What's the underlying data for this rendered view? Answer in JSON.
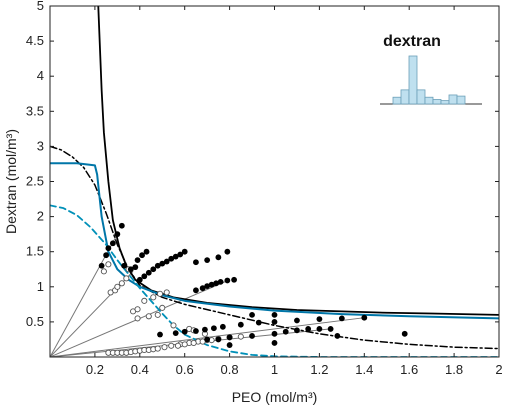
{
  "chart_data": {
    "type": "scatter",
    "title": "",
    "xlabel": "PEO (mol/m³)",
    "ylabel": "Dextran (mol/m³)",
    "xlim": [
      0,
      2
    ],
    "ylim": [
      0,
      5
    ],
    "xticks": [
      0.2,
      0.4,
      0.6,
      0.8,
      1,
      1.2,
      1.4,
      1.6,
      1.8,
      2
    ],
    "yticks": [
      0.5,
      1,
      1.5,
      2,
      2.5,
      3,
      3.5,
      4,
      4.5,
      5
    ],
    "grid": false,
    "colors": {
      "black": "#000000",
      "blue": "#0076a8",
      "dashed_blue": "#0090b8",
      "tie_line": "#777777",
      "inset_fill": "#bfe0ef",
      "inset_stroke": "#6b9fb8"
    },
    "inset": {
      "title": "dextran",
      "bars": [
        0.12,
        0.25,
        0.85,
        0.25,
        0.12,
        0.08,
        0.06,
        0.16,
        0.14
      ]
    },
    "series": [
      {
        "style": "solid-black",
        "points": [
          [
            0.215,
            5.0
          ],
          [
            0.22,
            4.6
          ],
          [
            0.23,
            3.8
          ],
          [
            0.24,
            3.2
          ],
          [
            0.26,
            2.5
          ],
          [
            0.28,
            1.95
          ],
          [
            0.31,
            1.55
          ],
          [
            0.34,
            1.3
          ],
          [
            0.38,
            1.1
          ],
          [
            0.45,
            0.95
          ],
          [
            0.55,
            0.85
          ],
          [
            0.7,
            0.77
          ],
          [
            0.9,
            0.71
          ],
          [
            1.1,
            0.67
          ],
          [
            1.3,
            0.65
          ],
          [
            1.5,
            0.63
          ],
          [
            1.7,
            0.62
          ],
          [
            2.0,
            0.6
          ]
        ]
      },
      {
        "style": "dashdot-black",
        "points": [
          [
            0.0,
            3.0
          ],
          [
            0.05,
            2.95
          ],
          [
            0.1,
            2.85
          ],
          [
            0.15,
            2.7
          ],
          [
            0.2,
            2.45
          ],
          [
            0.25,
            2.05
          ],
          [
            0.3,
            1.6
          ],
          [
            0.35,
            1.25
          ],
          [
            0.4,
            1.02
          ],
          [
            0.5,
            0.85
          ],
          [
            0.6,
            0.75
          ],
          [
            0.8,
            0.6
          ],
          [
            1.0,
            0.45
          ],
          [
            1.2,
            0.33
          ],
          [
            1.4,
            0.24
          ],
          [
            1.6,
            0.18
          ],
          [
            1.8,
            0.14
          ],
          [
            2.0,
            0.12
          ]
        ]
      },
      {
        "style": "solid-blue",
        "points": [
          [
            0.0,
            2.76
          ],
          [
            0.12,
            2.76
          ],
          [
            0.2,
            2.73
          ],
          [
            0.21,
            2.6
          ],
          [
            0.23,
            2.0
          ],
          [
            0.26,
            1.5
          ],
          [
            0.3,
            1.25
          ],
          [
            0.35,
            1.1
          ],
          [
            0.4,
            1.0
          ],
          [
            0.5,
            0.88
          ],
          [
            0.6,
            0.8
          ],
          [
            0.8,
            0.72
          ],
          [
            1.0,
            0.66
          ],
          [
            1.3,
            0.61
          ],
          [
            1.6,
            0.58
          ],
          [
            2.0,
            0.55
          ]
        ]
      },
      {
        "style": "dashed-blue",
        "points": [
          [
            0.0,
            2.16
          ],
          [
            0.06,
            2.12
          ],
          [
            0.12,
            2.02
          ],
          [
            0.18,
            1.85
          ],
          [
            0.25,
            1.6
          ],
          [
            0.3,
            1.38
          ],
          [
            0.35,
            1.18
          ],
          [
            0.38,
            1.06
          ],
          [
            0.4,
            0.98
          ],
          [
            0.45,
            0.8
          ],
          [
            0.5,
            0.62
          ],
          [
            0.55,
            0.45
          ],
          [
            0.6,
            0.32
          ],
          [
            0.7,
            0.17
          ],
          [
            0.8,
            0.08
          ],
          [
            0.9,
            0.03
          ],
          [
            1.0,
            0.01
          ],
          [
            1.2,
            0.0
          ],
          [
            2.0,
            0.0
          ]
        ]
      }
    ],
    "tie_lines": [
      {
        "from": [
          0.0,
          0.0
        ],
        "to": [
          0.3,
          1.75
        ]
      },
      {
        "from": [
          0.0,
          0.0
        ],
        "to": [
          0.37,
          1.22
        ]
      },
      {
        "from": [
          0.0,
          0.0
        ],
        "to": [
          0.8,
          1.1
        ]
      },
      {
        "from": [
          0.0,
          0.0
        ],
        "to": [
          1.4,
          0.56
        ]
      },
      {
        "from": [
          0.0,
          0.0
        ],
        "to": [
          1.25,
          0.4
        ]
      }
    ],
    "filled_points": [
      [
        0.23,
        1.3
      ],
      [
        0.25,
        1.45
      ],
      [
        0.26,
        1.55
      ],
      [
        0.28,
        1.62
      ],
      [
        0.3,
        1.75
      ],
      [
        0.32,
        1.87
      ],
      [
        0.33,
        1.3
      ],
      [
        0.36,
        1.25
      ],
      [
        0.38,
        1.28
      ],
      [
        0.39,
        1.38
      ],
      [
        0.41,
        1.45
      ],
      [
        0.43,
        1.5
      ],
      [
        0.4,
        1.1
      ],
      [
        0.42,
        1.15
      ],
      [
        0.44,
        1.2
      ],
      [
        0.46,
        1.25
      ],
      [
        0.48,
        1.3
      ],
      [
        0.5,
        1.33
      ],
      [
        0.52,
        1.36
      ],
      [
        0.54,
        1.4
      ],
      [
        0.56,
        1.43
      ],
      [
        0.58,
        1.46
      ],
      [
        0.6,
        1.5
      ],
      [
        0.65,
        1.35
      ],
      [
        0.7,
        1.38
      ],
      [
        0.75,
        1.42
      ],
      [
        0.79,
        1.5
      ],
      [
        0.65,
        0.95
      ],
      [
        0.68,
        0.98
      ],
      [
        0.7,
        1.01
      ],
      [
        0.72,
        1.03
      ],
      [
        0.74,
        1.05
      ],
      [
        0.76,
        1.07
      ],
      [
        0.79,
        1.09
      ],
      [
        0.82,
        1.1
      ],
      [
        0.49,
        0.32
      ],
      [
        0.56,
        0.34
      ],
      [
        0.6,
        0.36
      ],
      [
        0.65,
        0.37
      ],
      [
        0.69,
        0.39
      ],
      [
        0.73,
        0.41
      ],
      [
        0.77,
        0.43
      ],
      [
        0.85,
        0.46
      ],
      [
        0.93,
        0.49
      ],
      [
        1.0,
        0.5
      ],
      [
        1.1,
        0.52
      ],
      [
        1.2,
        0.54
      ],
      [
        1.3,
        0.55
      ],
      [
        1.4,
        0.56
      ],
      [
        0.7,
        0.25
      ],
      [
        0.75,
        0.25
      ],
      [
        0.8,
        0.28
      ],
      [
        0.9,
        0.3
      ],
      [
        1.0,
        0.33
      ],
      [
        1.05,
        0.36
      ],
      [
        1.1,
        0.38
      ],
      [
        1.15,
        0.4
      ],
      [
        1.2,
        0.4
      ],
      [
        1.25,
        0.4
      ],
      [
        0.9,
        0.6
      ],
      [
        1.0,
        0.6
      ],
      [
        0.8,
        0.17
      ],
      [
        1.0,
        0.2
      ],
      [
        1.28,
        0.3
      ],
      [
        1.58,
        0.33
      ]
    ],
    "open_points": [
      [
        0.24,
        1.22
      ],
      [
        0.26,
        1.32
      ],
      [
        0.27,
        0.92
      ],
      [
        0.29,
        0.95
      ],
      [
        0.3,
        1.0
      ],
      [
        0.32,
        1.05
      ],
      [
        0.34,
        1.12
      ],
      [
        0.35,
        1.25
      ],
      [
        0.37,
        0.65
      ],
      [
        0.39,
        0.68
      ],
      [
        0.42,
        0.8
      ],
      [
        0.46,
        0.85
      ],
      [
        0.49,
        0.9
      ],
      [
        0.52,
        0.92
      ],
      [
        0.39,
        0.55
      ],
      [
        0.44,
        0.58
      ],
      [
        0.48,
        0.6
      ],
      [
        0.5,
        0.7
      ],
      [
        0.55,
        0.45
      ],
      [
        0.62,
        0.4
      ],
      [
        0.64,
        0.38
      ],
      [
        0.69,
        0.33
      ],
      [
        0.26,
        0.06
      ],
      [
        0.28,
        0.06
      ],
      [
        0.3,
        0.06
      ],
      [
        0.32,
        0.06
      ],
      [
        0.34,
        0.06
      ],
      [
        0.36,
        0.07
      ],
      [
        0.38,
        0.08
      ],
      [
        0.4,
        0.09
      ],
      [
        0.42,
        0.1
      ],
      [
        0.44,
        0.1
      ],
      [
        0.46,
        0.11
      ],
      [
        0.48,
        0.12
      ],
      [
        0.51,
        0.14
      ],
      [
        0.54,
        0.16
      ],
      [
        0.58,
        0.18
      ],
      [
        0.62,
        0.2
      ],
      [
        0.66,
        0.22
      ],
      [
        0.7,
        0.24
      ],
      [
        0.75,
        0.26
      ],
      [
        0.8,
        0.28
      ],
      [
        0.85,
        0.29
      ],
      [
        0.57,
        0.16
      ],
      [
        0.6,
        0.18
      ],
      [
        0.64,
        0.2
      ],
      [
        0.68,
        0.22
      ],
      [
        0.72,
        0.24
      ]
    ]
  }
}
